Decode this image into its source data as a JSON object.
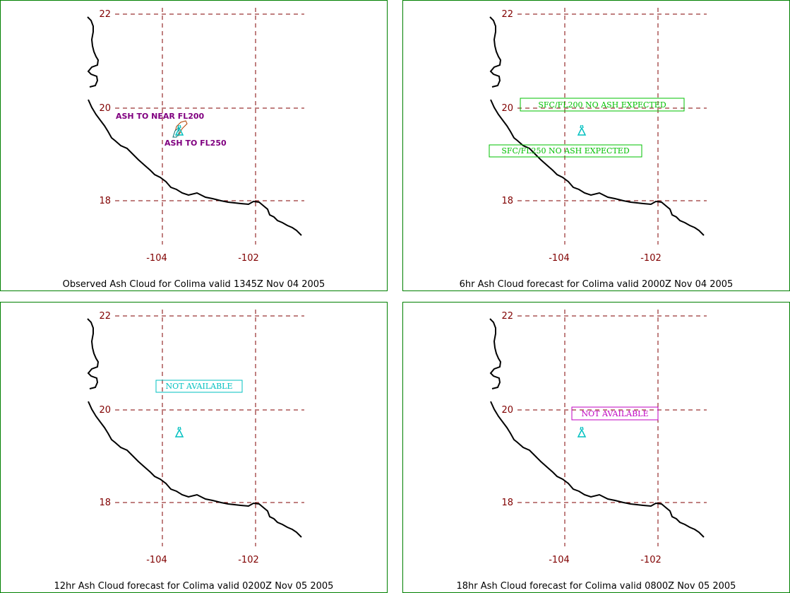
{
  "axes": {
    "lat_ticks": [
      "22",
      "20",
      "18"
    ],
    "lon_ticks": [
      "-104",
      "-102"
    ]
  },
  "colors": {
    "border": "#008000",
    "grid": "#800000",
    "coast": "#000000",
    "volcano": "#00c0c0",
    "observed_labels": "#800080",
    "no_ash": "#00c000",
    "not_available_12hr": "#00c0c0",
    "not_available_18hr": "#c000c0"
  },
  "volcano_icon": "volcano-icon",
  "panels": [
    {
      "caption": "Observed Ash Cloud for Colima valid 1345Z Nov 04 2005",
      "labels": [
        "ASH TO NEAR FL200",
        "ASH TO FL250"
      ]
    },
    {
      "caption": "6hr Ash Cloud forecast for Colima valid 2000Z Nov 04 2005",
      "labels": [
        "SFC/FL200 NO ASH EXPECTED",
        "SFC/FL250 NO ASH EXPECTED"
      ]
    },
    {
      "caption": "12hr Ash Cloud forecast for Colima valid 0200Z Nov 05 2005",
      "labels": [
        "NOT AVAILABLE"
      ]
    },
    {
      "caption": "18hr Ash Cloud forecast for Colima valid 0800Z Nov 05 2005",
      "labels": [
        "NOT AVAILABLE"
      ]
    }
  ]
}
